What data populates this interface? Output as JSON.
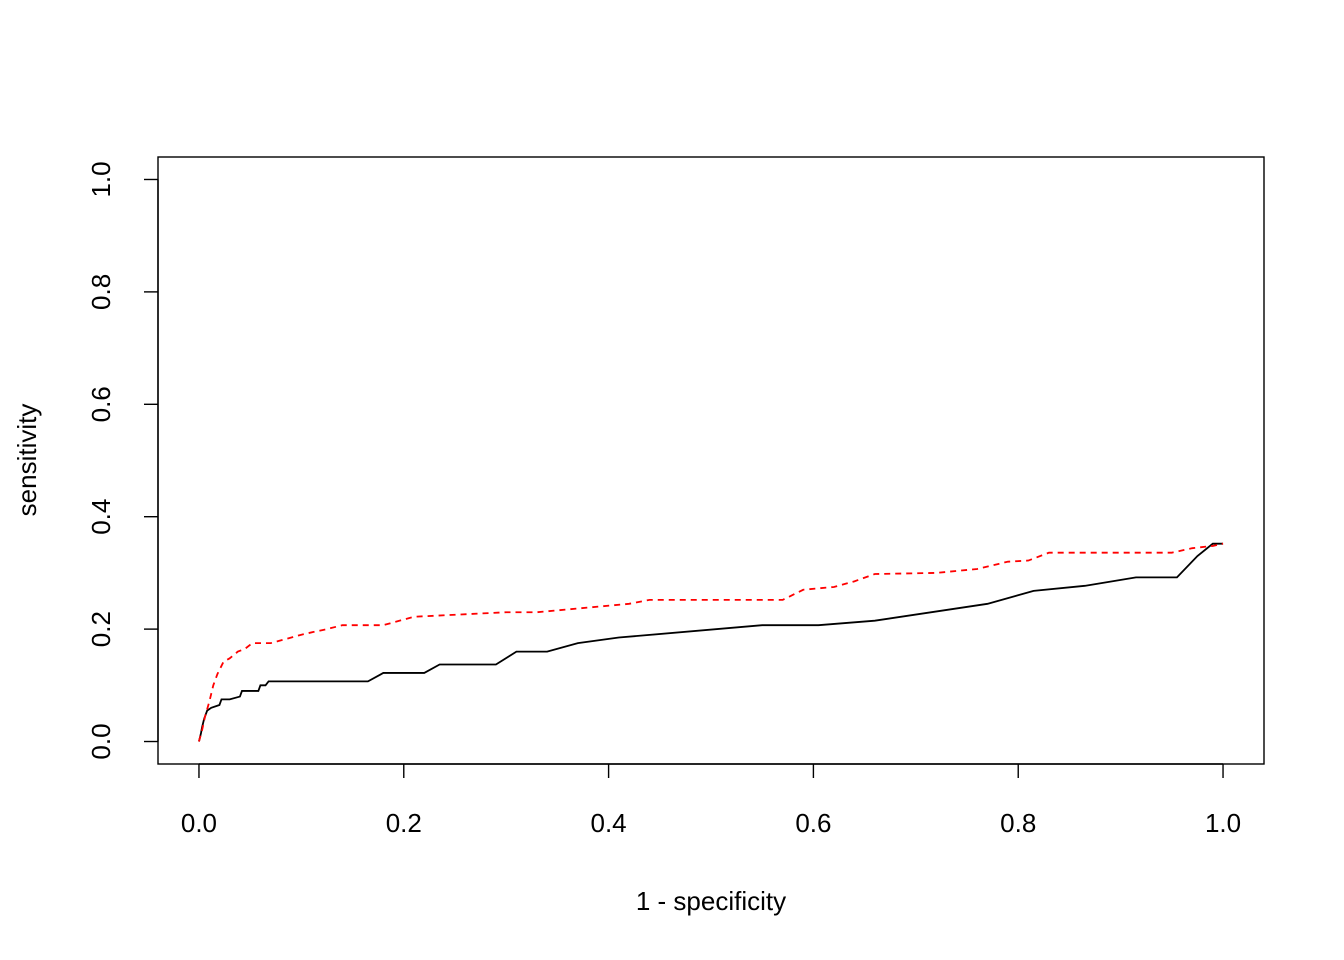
{
  "chart_data": {
    "type": "line",
    "title": "",
    "xlabel": "1 - specificity",
    "ylabel": "sensitivity",
    "xlim": [
      -0.04,
      1.04
    ],
    "ylim": [
      -0.04,
      1.04
    ],
    "x_ticks": [
      "0.0",
      "0.2",
      "0.4",
      "0.6",
      "0.8",
      "1.0"
    ],
    "y_ticks": [
      "0.0",
      "0.2",
      "0.4",
      "0.6",
      "0.8",
      "1.0"
    ],
    "grid": false,
    "legend": "none",
    "series": [
      {
        "color": "#000000",
        "dash": "solid",
        "x": [
          0,
          0.002,
          0.003,
          0.005,
          0.008,
          0.012,
          0.02,
          0.022,
          0.03,
          0.04,
          0.042,
          0.045,
          0.058,
          0.06,
          0.065,
          0.068,
          0.08,
          0.165,
          0.18,
          0.22,
          0.235,
          0.29,
          0.31,
          0.34,
          0.37,
          0.41,
          0.55,
          0.605,
          0.66,
          0.77,
          0.815,
          0.865,
          0.915,
          0.955,
          0.975,
          0.99,
          1.0
        ],
        "y": [
          0,
          0.015,
          0.025,
          0.04,
          0.055,
          0.06,
          0.065,
          0.075,
          0.075,
          0.08,
          0.09,
          0.09,
          0.09,
          0.1,
          0.1,
          0.107,
          0.107,
          0.107,
          0.122,
          0.122,
          0.137,
          0.137,
          0.16,
          0.16,
          0.175,
          0.185,
          0.207,
          0.207,
          0.215,
          0.245,
          0.268,
          0.277,
          0.292,
          0.292,
          0.33,
          0.352,
          0.352
        ]
      },
      {
        "color": "#ff0000",
        "dash": "dashed",
        "x": [
          0,
          0.003,
          0.006,
          0.01,
          0.014,
          0.018,
          0.024,
          0.03,
          0.038,
          0.045,
          0.052,
          0.058,
          0.07,
          0.1,
          0.112,
          0.125,
          0.14,
          0.18,
          0.21,
          0.3,
          0.33,
          0.42,
          0.44,
          0.5,
          0.57,
          0.59,
          0.62,
          0.64,
          0.66,
          0.72,
          0.76,
          0.79,
          0.81,
          0.83,
          0.87,
          0.95,
          0.97,
          0.99,
          1.0
        ],
        "y": [
          0,
          0.02,
          0.045,
          0.07,
          0.1,
          0.12,
          0.142,
          0.148,
          0.16,
          0.165,
          0.175,
          0.175,
          0.175,
          0.19,
          0.195,
          0.2,
          0.207,
          0.207,
          0.222,
          0.23,
          0.23,
          0.245,
          0.252,
          0.252,
          0.252,
          0.27,
          0.275,
          0.285,
          0.298,
          0.3,
          0.307,
          0.32,
          0.322,
          0.336,
          0.336,
          0.336,
          0.344,
          0.348,
          0.352
        ]
      }
    ]
  }
}
